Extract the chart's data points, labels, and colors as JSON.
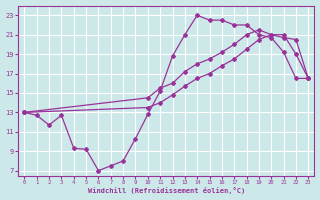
{
  "bg_color": "#cce8e8",
  "grid_color": "#ffffff",
  "line_color": "#993399",
  "xlabel": "Windchill (Refroidissement éolien,°C)",
  "xlim": [
    -0.5,
    23.5
  ],
  "ylim": [
    6.5,
    24
  ],
  "xticks": [
    0,
    1,
    2,
    3,
    4,
    5,
    6,
    7,
    8,
    9,
    10,
    11,
    12,
    13,
    14,
    15,
    16,
    17,
    18,
    19,
    20,
    21,
    22,
    23
  ],
  "yticks": [
    7,
    9,
    11,
    13,
    15,
    17,
    19,
    21,
    23
  ],
  "line1_x": [
    0,
    1,
    2,
    3,
    4,
    5,
    6,
    7,
    8,
    9,
    10,
    11,
    12,
    13,
    14,
    15,
    16,
    17,
    18,
    19,
    20,
    21,
    22,
    23
  ],
  "line1_y": [
    13,
    12.7,
    11.7,
    12.7,
    9.3,
    9.2,
    7.0,
    7.5,
    8.0,
    10.3,
    12.8,
    15.2,
    18.8,
    21.0,
    23.0,
    22.5,
    22.5,
    22.0,
    22.0,
    21.0,
    20.7,
    19.2,
    16.5,
    16.5
  ],
  "line2_x": [
    0,
    10,
    11,
    12,
    13,
    14,
    15,
    16,
    17,
    18,
    19,
    20,
    21,
    22,
    23
  ],
  "line2_y": [
    13,
    14.5,
    15.5,
    16.0,
    17.2,
    18.0,
    18.5,
    19.2,
    20.0,
    21.0,
    21.5,
    21.0,
    20.7,
    20.5,
    16.5
  ],
  "line3_x": [
    0,
    10,
    11,
    12,
    13,
    14,
    15,
    16,
    17,
    18,
    19,
    20,
    21,
    22,
    23
  ],
  "line3_y": [
    13,
    13.5,
    14.0,
    14.8,
    15.7,
    16.5,
    17.0,
    17.8,
    18.5,
    19.5,
    20.5,
    21.0,
    21.0,
    19.0,
    16.5
  ]
}
